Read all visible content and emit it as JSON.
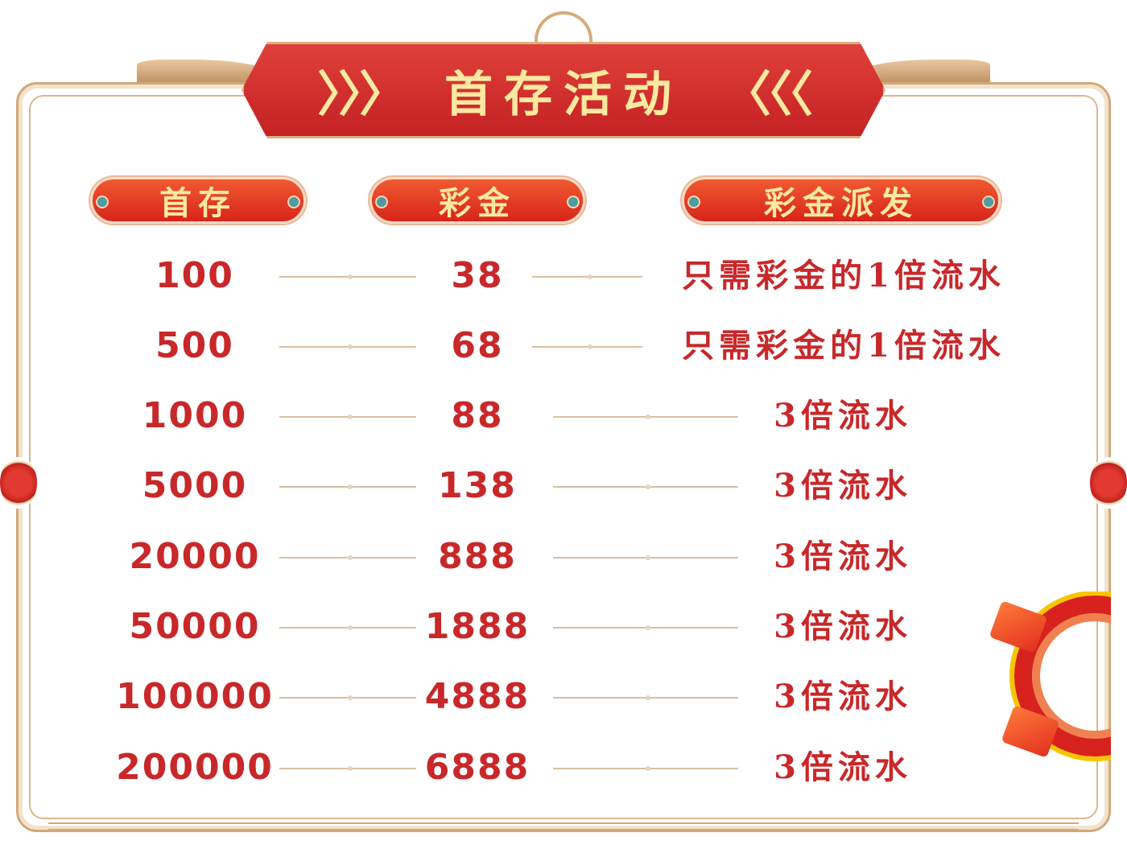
{
  "banner": {
    "title": "首存活动",
    "left_arrows": "〉〉〉",
    "right_arrows": "〈〈〈"
  },
  "headers": [
    "首存",
    "彩金",
    "彩金派发"
  ],
  "rows": [
    {
      "deposit": "100",
      "bonus": "38",
      "payout": "只需彩金的1倍流水"
    },
    {
      "deposit": "500",
      "bonus": "68",
      "payout": "只需彩金的1倍流水"
    },
    {
      "deposit": "1000",
      "bonus": "88",
      "payout": "3倍流水"
    },
    {
      "deposit": "5000",
      "bonus": "138",
      "payout": "3倍流水"
    },
    {
      "deposit": "20000",
      "bonus": "888",
      "payout": "3倍流水"
    },
    {
      "deposit": "50000",
      "bonus": "1888",
      "payout": "3倍流水"
    },
    {
      "deposit": "100000",
      "bonus": "4888",
      "payout": "3倍流水"
    },
    {
      "deposit": "200000",
      "bonus": "6888",
      "payout": "3倍流水"
    }
  ],
  "colors": {
    "text_red": "#c8282a",
    "banner_red": "#c42224",
    "gold": "#fbe9a0",
    "frame": "#d2a878"
  }
}
